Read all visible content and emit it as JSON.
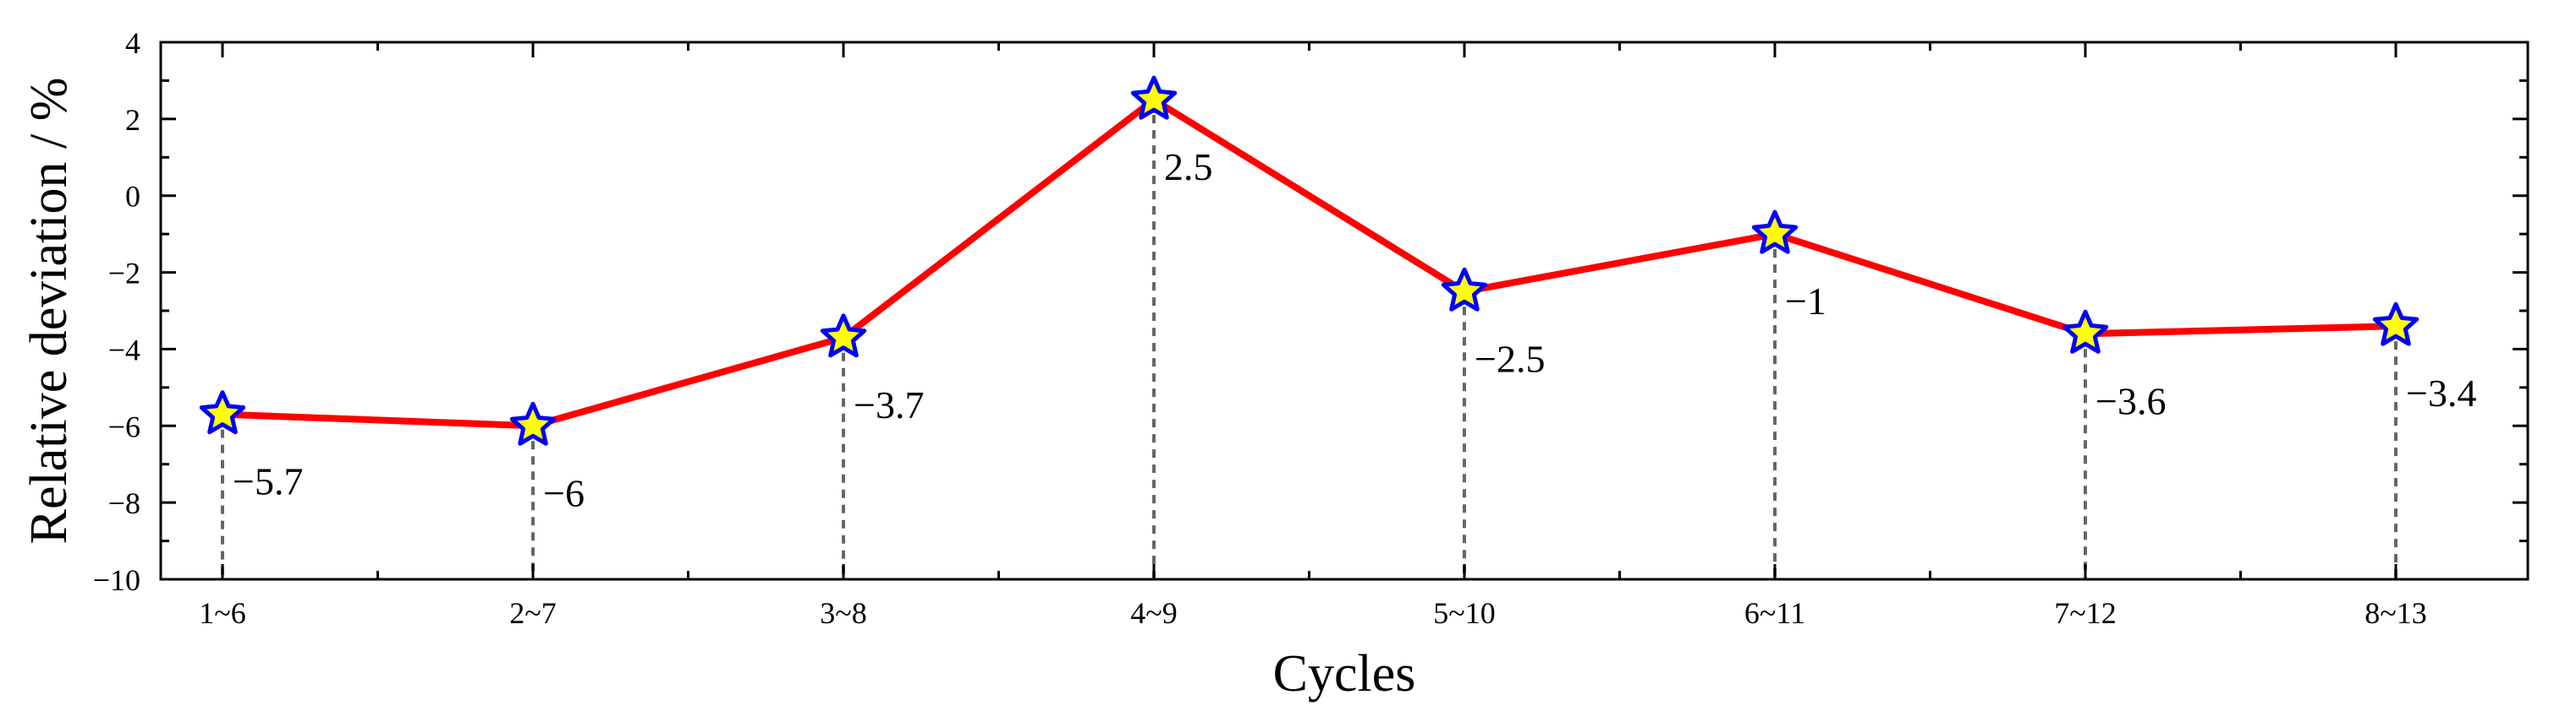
{
  "chart_data": {
    "type": "line",
    "title": "",
    "xlabel": "Cycles",
    "ylabel": "Relative deviation / %",
    "categories": [
      "1~6",
      "2~7",
      "3~8",
      "4~9",
      "5~10",
      "6~11",
      "7~12",
      "8~13"
    ],
    "series": [
      {
        "values": [
          -5.7,
          -6,
          -3.7,
          2.5,
          -2.5,
          -1,
          -3.6,
          -3.4
        ]
      }
    ],
    "data_labels": [
      "−5.7",
      "−6",
      "−3.7",
      "2.5",
      "−2.5",
      "−1",
      "−3.6",
      "−3.4"
    ],
    "ylim": [
      -10,
      4
    ],
    "yticks": [
      4,
      2,
      0,
      -2,
      -4,
      -6,
      -8,
      -10
    ],
    "ytick_labels": [
      "4",
      "2",
      "0",
      "−2",
      "−4",
      "−6",
      "−8",
      "−10"
    ],
    "grid": false,
    "legend": "none",
    "drop_lines": true,
    "colors": {
      "line": "#ff0000",
      "marker_fill": "#ffff00",
      "marker_edge": "#0000ff",
      "drop_line": "#666666"
    }
  }
}
